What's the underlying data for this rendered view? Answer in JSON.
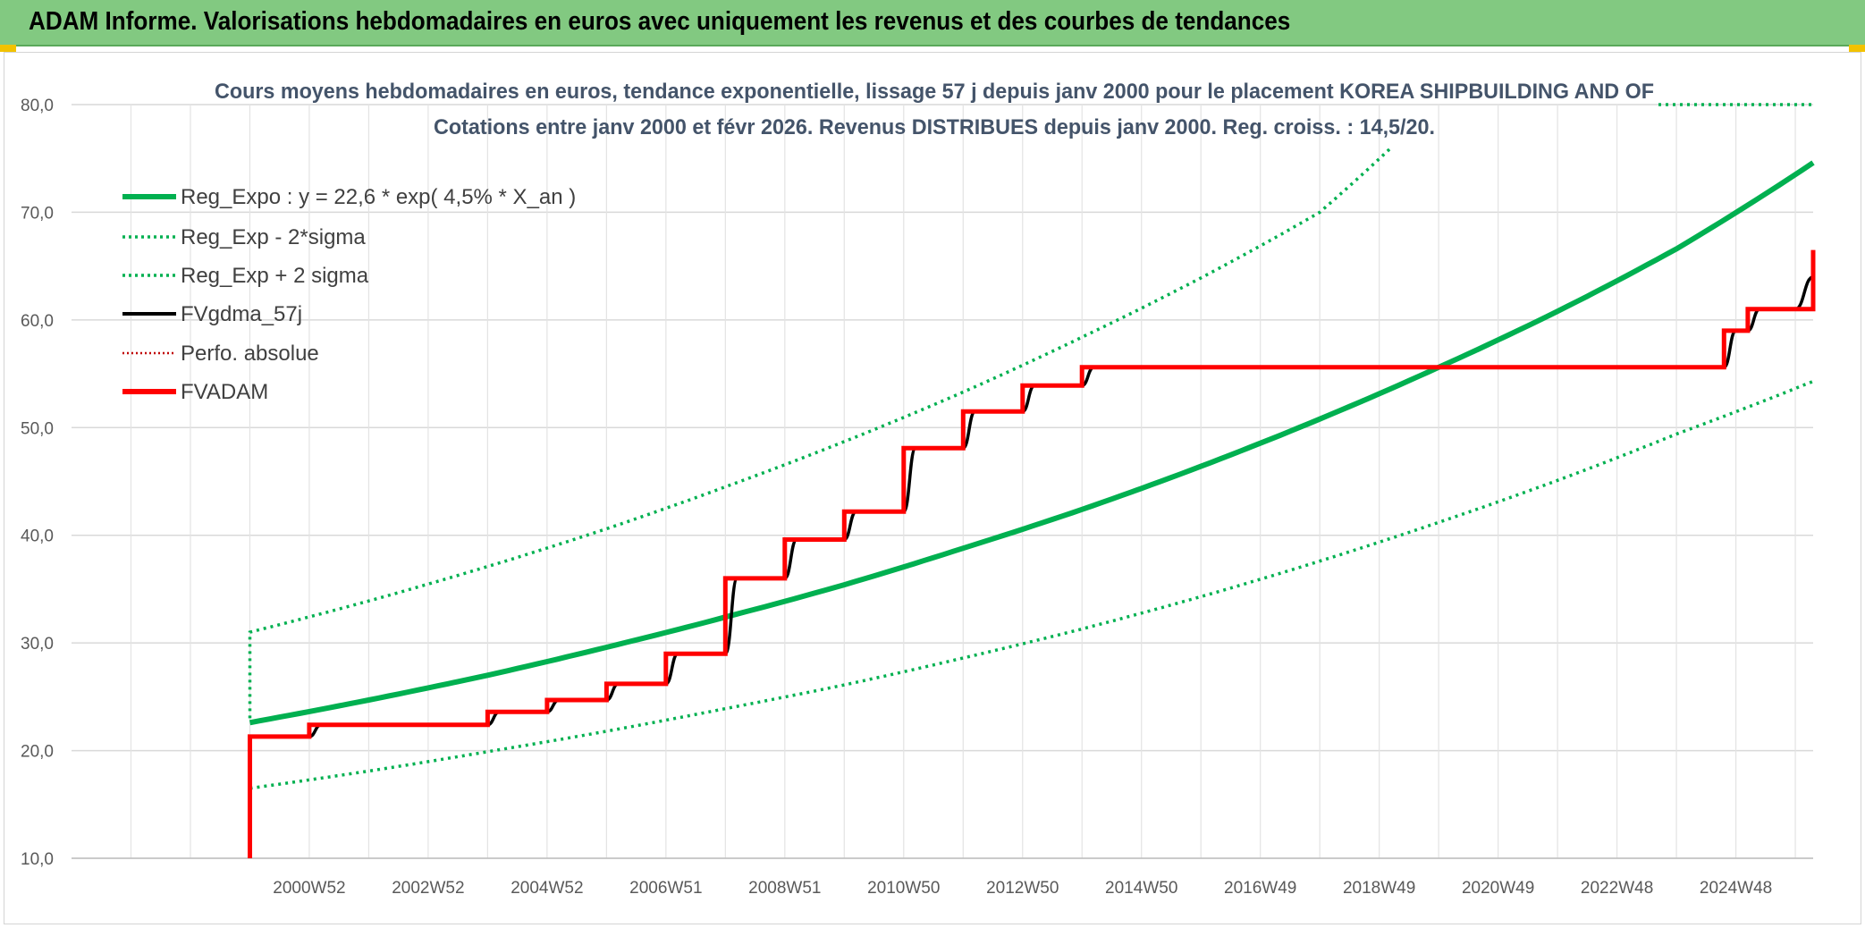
{
  "header": {
    "title": "ADAM Informe. Valorisations hebdomadaires en euros avec uniquement les revenus et des courbes de tendances"
  },
  "colors": {
    "header_bg": "#82c981",
    "reg_green": "#00b050",
    "fv_black": "#000000",
    "adam_red": "#ff0000",
    "perfo_red": "#c00000"
  },
  "chart_data": {
    "type": "line",
    "title_line1": "Cours moyens hebdomadaires en euros, tendance exponentielle, lissage 57 j depuis janv 2000 pour le placement KOREA SHIPBUILDING AND OF",
    "title_line2": "Cotations entre janv 2000 et févr 2026. Revenus DISTRIBUES depuis janv 2000. Reg. croiss. : 14,5/20.",
    "ylim": [
      10,
      80
    ],
    "yticks": [
      "10,0",
      "20,0",
      "30,0",
      "40,0",
      "50,0",
      "60,0",
      "70,0",
      "80,0"
    ],
    "xlim": [
      1997,
      2026.3
    ],
    "xtick_labels": [
      "2000W52",
      "2002W52",
      "2004W52",
      "2006W51",
      "2008W51",
      "2010W50",
      "2012W50",
      "2014W50",
      "2016W49",
      "2018W49",
      "2020W49",
      "2022W48",
      "2024W48"
    ],
    "xtick_positions": [
      2001,
      2003,
      2005,
      2007,
      2009,
      2011,
      2013,
      2015,
      2017,
      2019,
      2021,
      2023,
      2025
    ],
    "grid": true,
    "legend_position": "top-left",
    "legend": [
      {
        "label": "Reg_Expo : y = 22,6 * exp( 4,5% *  X_an )",
        "style": "thick-green"
      },
      {
        "label": "Reg_Exp - 2*sigma",
        "style": "dotted-green"
      },
      {
        "label": "Reg_Exp + 2 sigma",
        "style": "dotted-green"
      },
      {
        "label": "FVgdma_57j",
        "style": "solid-black"
      },
      {
        "label": "Perfo. absolue",
        "style": "dotted-red"
      },
      {
        "label": "FVADAM",
        "style": "thick-red"
      }
    ],
    "series": [
      {
        "name": "Reg_Expo : y = 22,6 * exp( 4,5% *  X_an )",
        "x": [
          2000.0,
          2002.0,
          2004.0,
          2006.0,
          2008.0,
          2010.0,
          2012.0,
          2014.0,
          2016.0,
          2018.0,
          2020.0,
          2022.0,
          2024.0,
          2026.3
        ],
        "y": [
          22.6,
          24.7,
          27.0,
          29.6,
          32.4,
          35.4,
          38.8,
          42.4,
          46.4,
          50.8,
          55.6,
          60.8,
          66.6,
          74.6
        ]
      },
      {
        "name": "Reg_Exp - 2*sigma",
        "x": [
          2000.0,
          2002.0,
          2004.0,
          2006.0,
          2008.0,
          2010.0,
          2012.0,
          2014.0,
          2016.0,
          2018.0,
          2020.0,
          2022.0,
          2024.0,
          2026.3
        ],
        "y": [
          16.5,
          18.1,
          19.9,
          21.8,
          23.9,
          26.1,
          28.6,
          31.3,
          34.3,
          37.6,
          41.2,
          45.1,
          49.4,
          54.3
        ]
      },
      {
        "name": "Reg_Exp + 2 sigma",
        "x": [
          2000.0,
          2000.0,
          2002.0,
          2004.0,
          2006.0,
          2008.0,
          2010.0,
          2012.0,
          2014.0,
          2016.0,
          2018.0,
          2019.2
        ],
        "y": [
          23.0,
          31.0,
          33.9,
          37.1,
          40.6,
          44.5,
          48.7,
          53.3,
          58.4,
          63.9,
          70.0,
          76.0
        ]
      },
      {
        "name": "FVgdma_57j",
        "x": [
          2000.0,
          2000.0,
          2001.0,
          2001.2,
          2004.0,
          2004.2,
          2005.0,
          2005.2,
          2006.0,
          2006.2,
          2007.0,
          2007.2,
          2008.0,
          2008.2,
          2009.0,
          2009.2,
          2010.0,
          2010.2,
          2011.0,
          2011.2,
          2012.0,
          2012.2,
          2013.0,
          2013.2,
          2014.0,
          2014.2,
          2024.8,
          2025.0,
          2025.2,
          2025.4,
          2026.0,
          2026.3
        ],
        "y": [
          10.0,
          21.3,
          21.3,
          22.4,
          22.4,
          23.6,
          23.6,
          24.7,
          24.7,
          26.2,
          26.2,
          29.0,
          29.0,
          36.0,
          36.0,
          39.6,
          39.6,
          42.2,
          42.2,
          48.1,
          48.1,
          51.5,
          51.5,
          53.9,
          53.9,
          55.6,
          55.6,
          59.0,
          59.0,
          61.0,
          61.0,
          64.0
        ]
      },
      {
        "name": "FVADAM",
        "x": [
          2000.0,
          2000.0,
          2001.0,
          2001.0,
          2004.0,
          2004.0,
          2005.0,
          2005.0,
          2006.0,
          2006.0,
          2007.0,
          2007.0,
          2008.0,
          2008.0,
          2009.0,
          2009.0,
          2010.0,
          2010.0,
          2011.0,
          2011.0,
          2012.0,
          2012.0,
          2013.0,
          2013.0,
          2014.0,
          2014.0,
          2024.8,
          2024.8,
          2025.2,
          2025.2,
          2026.0,
          2026.0,
          2026.3,
          2026.3
        ],
        "y": [
          10.0,
          21.3,
          21.3,
          22.4,
          22.4,
          23.6,
          23.6,
          24.7,
          24.7,
          26.2,
          26.2,
          29.0,
          29.0,
          36.0,
          36.0,
          39.6,
          39.6,
          42.2,
          42.2,
          48.1,
          48.1,
          51.5,
          51.5,
          53.9,
          53.9,
          55.6,
          55.6,
          59.0,
          59.0,
          61.0,
          61.0,
          61.0,
          61.0,
          66.5
        ]
      }
    ]
  }
}
